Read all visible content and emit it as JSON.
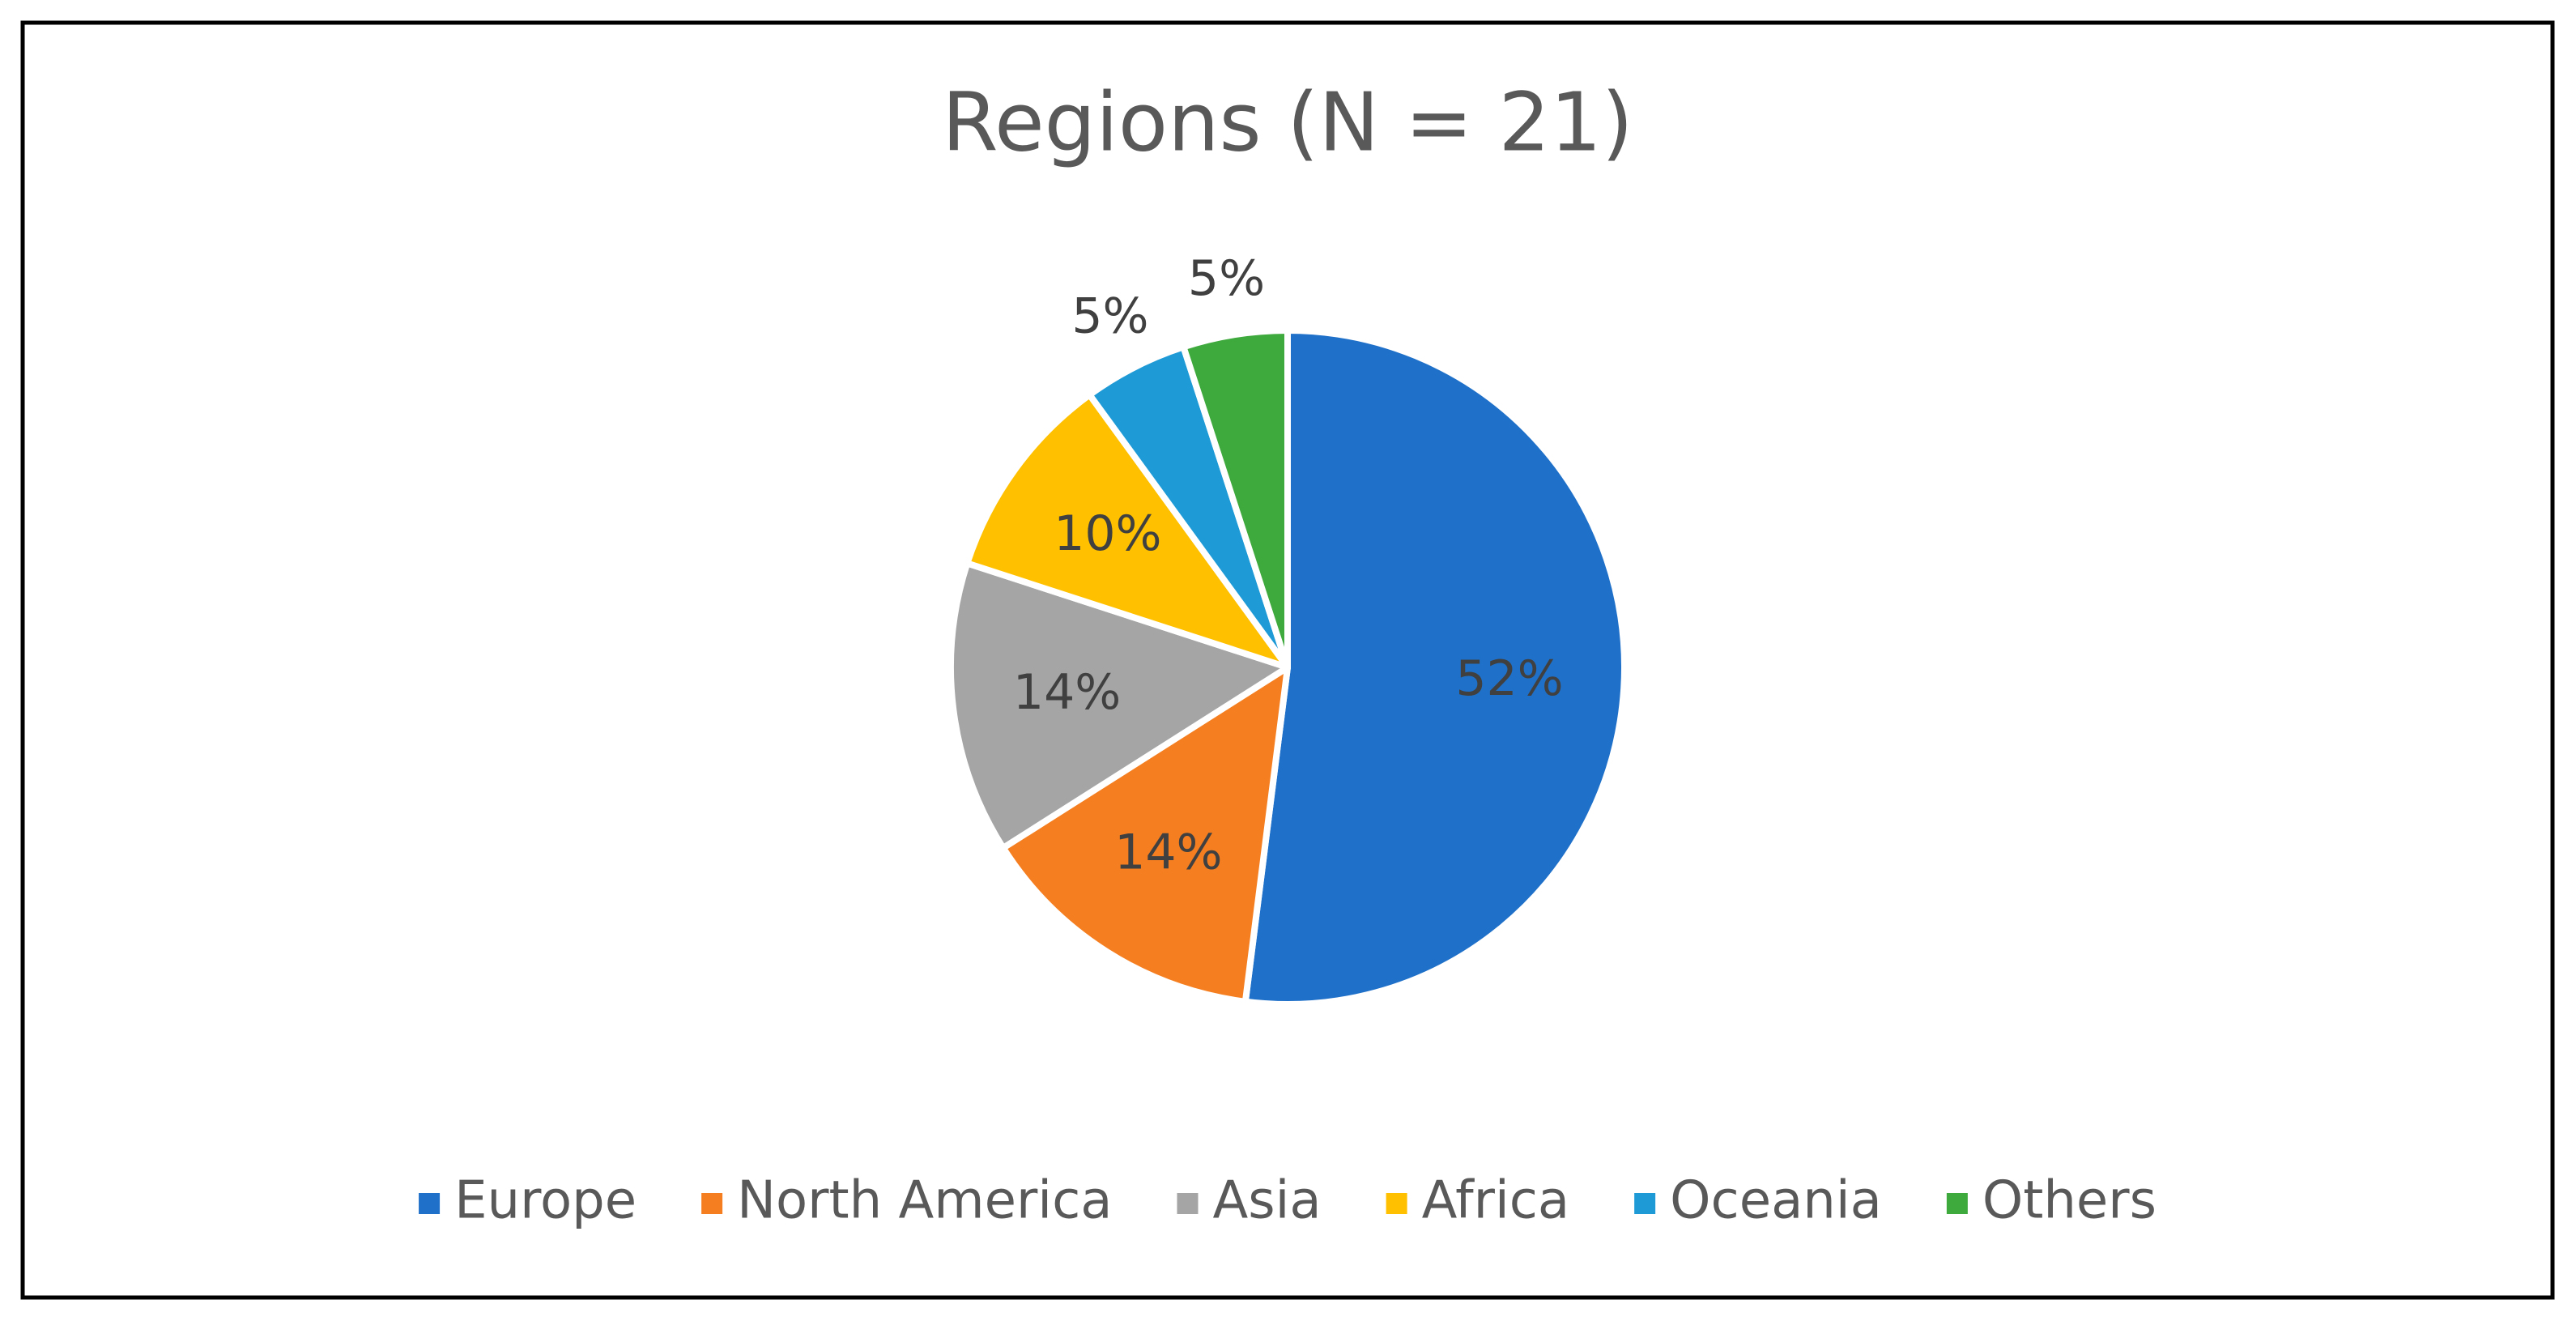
{
  "chart_data": {
    "type": "pie",
    "title": "Regions (N = 21)",
    "categories": [
      "Europe",
      "North America",
      "Asia",
      "Africa",
      "Oceania",
      "Others"
    ],
    "values": [
      52,
      14,
      14,
      10,
      5,
      5
    ],
    "value_labels": [
      "52%",
      "14%",
      "14%",
      "10%",
      "5%",
      "5%"
    ],
    "colors": [
      "#1f70c9",
      "#f57f20",
      "#a5a5a5",
      "#ffc000",
      "#1e9ad6",
      "#3ea93c"
    ],
    "legend": "bottom"
  }
}
